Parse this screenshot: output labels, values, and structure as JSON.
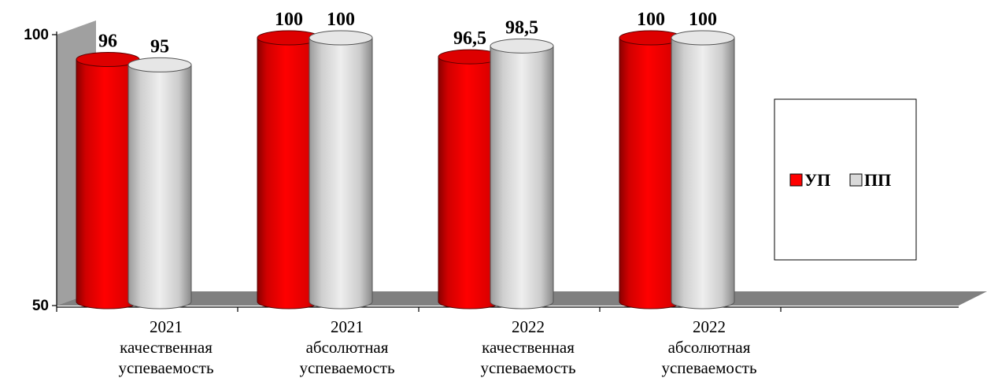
{
  "chart_data": {
    "type": "bar",
    "categories": [
      [
        "2021",
        "качественная",
        "успеваемость"
      ],
      [
        "2021",
        "абсолютная",
        "успеваемость"
      ],
      [
        "2022",
        "качественная",
        "успеваемость"
      ],
      [
        "2022",
        "абсолютная",
        "успеваемость"
      ]
    ],
    "series": [
      {
        "name": "УП",
        "values": [
          96,
          100,
          96.5,
          100
        ],
        "labels": [
          "96",
          "100",
          "96,5",
          "100"
        ],
        "color": "#ff0000"
      },
      {
        "name": "ПП",
        "values": [
          95,
          100,
          98.5,
          100
        ],
        "labels": [
          "95",
          "100",
          "98,5",
          "100"
        ],
        "color": "#d9d9d9"
      }
    ],
    "yticks": [
      "50",
      "100"
    ],
    "ylim": [
      50,
      100
    ],
    "style": "3d-cylinder",
    "legend_position": "right",
    "grid": false
  }
}
